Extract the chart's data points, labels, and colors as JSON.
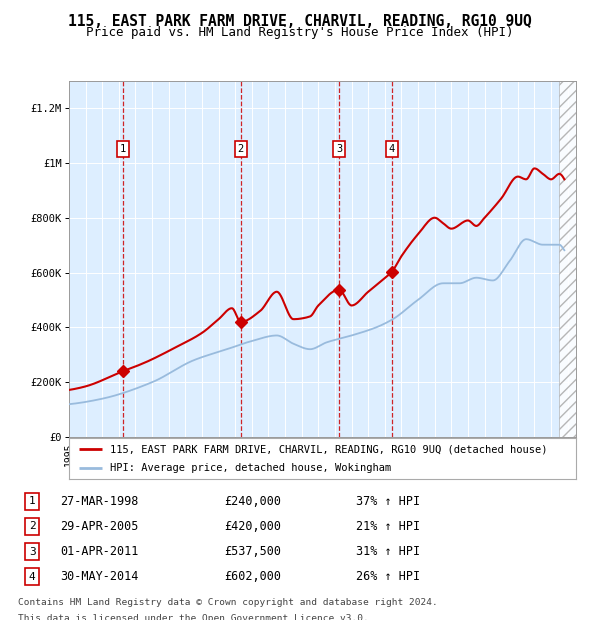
{
  "title": "115, EAST PARK FARM DRIVE, CHARVIL, READING, RG10 9UQ",
  "subtitle": "Price paid vs. HM Land Registry's House Price Index (HPI)",
  "xlim_start": 1995.0,
  "xlim_end": 2025.5,
  "ylim": [
    0,
    1300000
  ],
  "yticks": [
    0,
    200000,
    400000,
    600000,
    800000,
    1000000,
    1200000
  ],
  "ytick_labels": [
    "£0",
    "£200K",
    "£400K",
    "£600K",
    "£800K",
    "£1M",
    "£1.2M"
  ],
  "background_color": "#ffffff",
  "plot_bg_color": "#ddeeff",
  "red_line_color": "#cc0000",
  "blue_line_color": "#99bbdd",
  "dashed_line_color": "#cc0000",
  "legend_line1": "115, EAST PARK FARM DRIVE, CHARVIL, READING, RG10 9UQ (detached house)",
  "legend_line2": "HPI: Average price, detached house, Wokingham",
  "transactions": [
    {
      "num": 1,
      "date": "27-MAR-1998",
      "year": 1998.23,
      "price": 240000,
      "pct": "37%",
      "dir": "↑"
    },
    {
      "num": 2,
      "date": "29-APR-2005",
      "year": 2005.33,
      "price": 420000,
      "pct": "21%",
      "dir": "↑"
    },
    {
      "num": 3,
      "date": "01-APR-2011",
      "year": 2011.25,
      "price": 537500,
      "pct": "31%",
      "dir": "↑"
    },
    {
      "num": 4,
      "date": "30-MAY-2014",
      "year": 2014.41,
      "price": 602000,
      "pct": "26%",
      "dir": "↑"
    }
  ],
  "footnote1": "Contains HM Land Registry data © Crown copyright and database right 2024.",
  "footnote2": "This data is licensed under the Open Government Licence v3.0.",
  "title_fontsize": 10.5,
  "subtitle_fontsize": 9,
  "tick_fontsize": 7.5,
  "legend_fontsize": 8,
  "table_fontsize": 8.5
}
